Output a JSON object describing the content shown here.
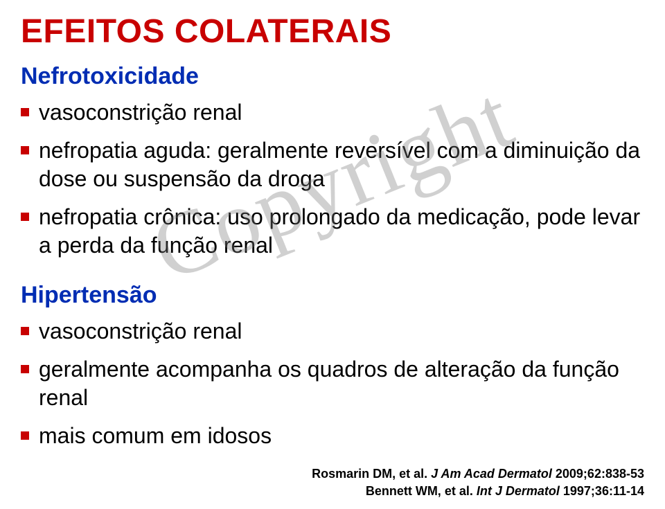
{
  "title": "EFEITOS COLATERAIS",
  "watermark": "Copyright",
  "colors": {
    "title": "#c80000",
    "heading": "#002db3",
    "body": "#000000",
    "bullet": "#c80000",
    "background": "#ffffff",
    "watermark": "rgba(120,120,120,0.35)"
  },
  "section1": {
    "heading": "Nefrotoxicidade",
    "bullets": [
      "vasoconstrição renal",
      "nefropatia aguda: geralmente reversível com a diminuição da dose ou suspensão da droga",
      "nefropatia crônica: uso prolongado da medicação, pode levar a perda da função renal"
    ]
  },
  "section2": {
    "heading": "Hipertensão",
    "bullets": [
      "vasoconstrição renal",
      "geralmente acompanha os quadros de alteração da função renal",
      "mais comum em idosos"
    ]
  },
  "refs": [
    {
      "author": "Rosmarin DM, et al.",
      "journal": "J Am Acad Dermatol ",
      "rest": "2009;62:838-53"
    },
    {
      "author": "Bennett WM, et al.",
      "journal": "Int J Dermatol ",
      "rest": "1997;36:11-14"
    }
  ]
}
